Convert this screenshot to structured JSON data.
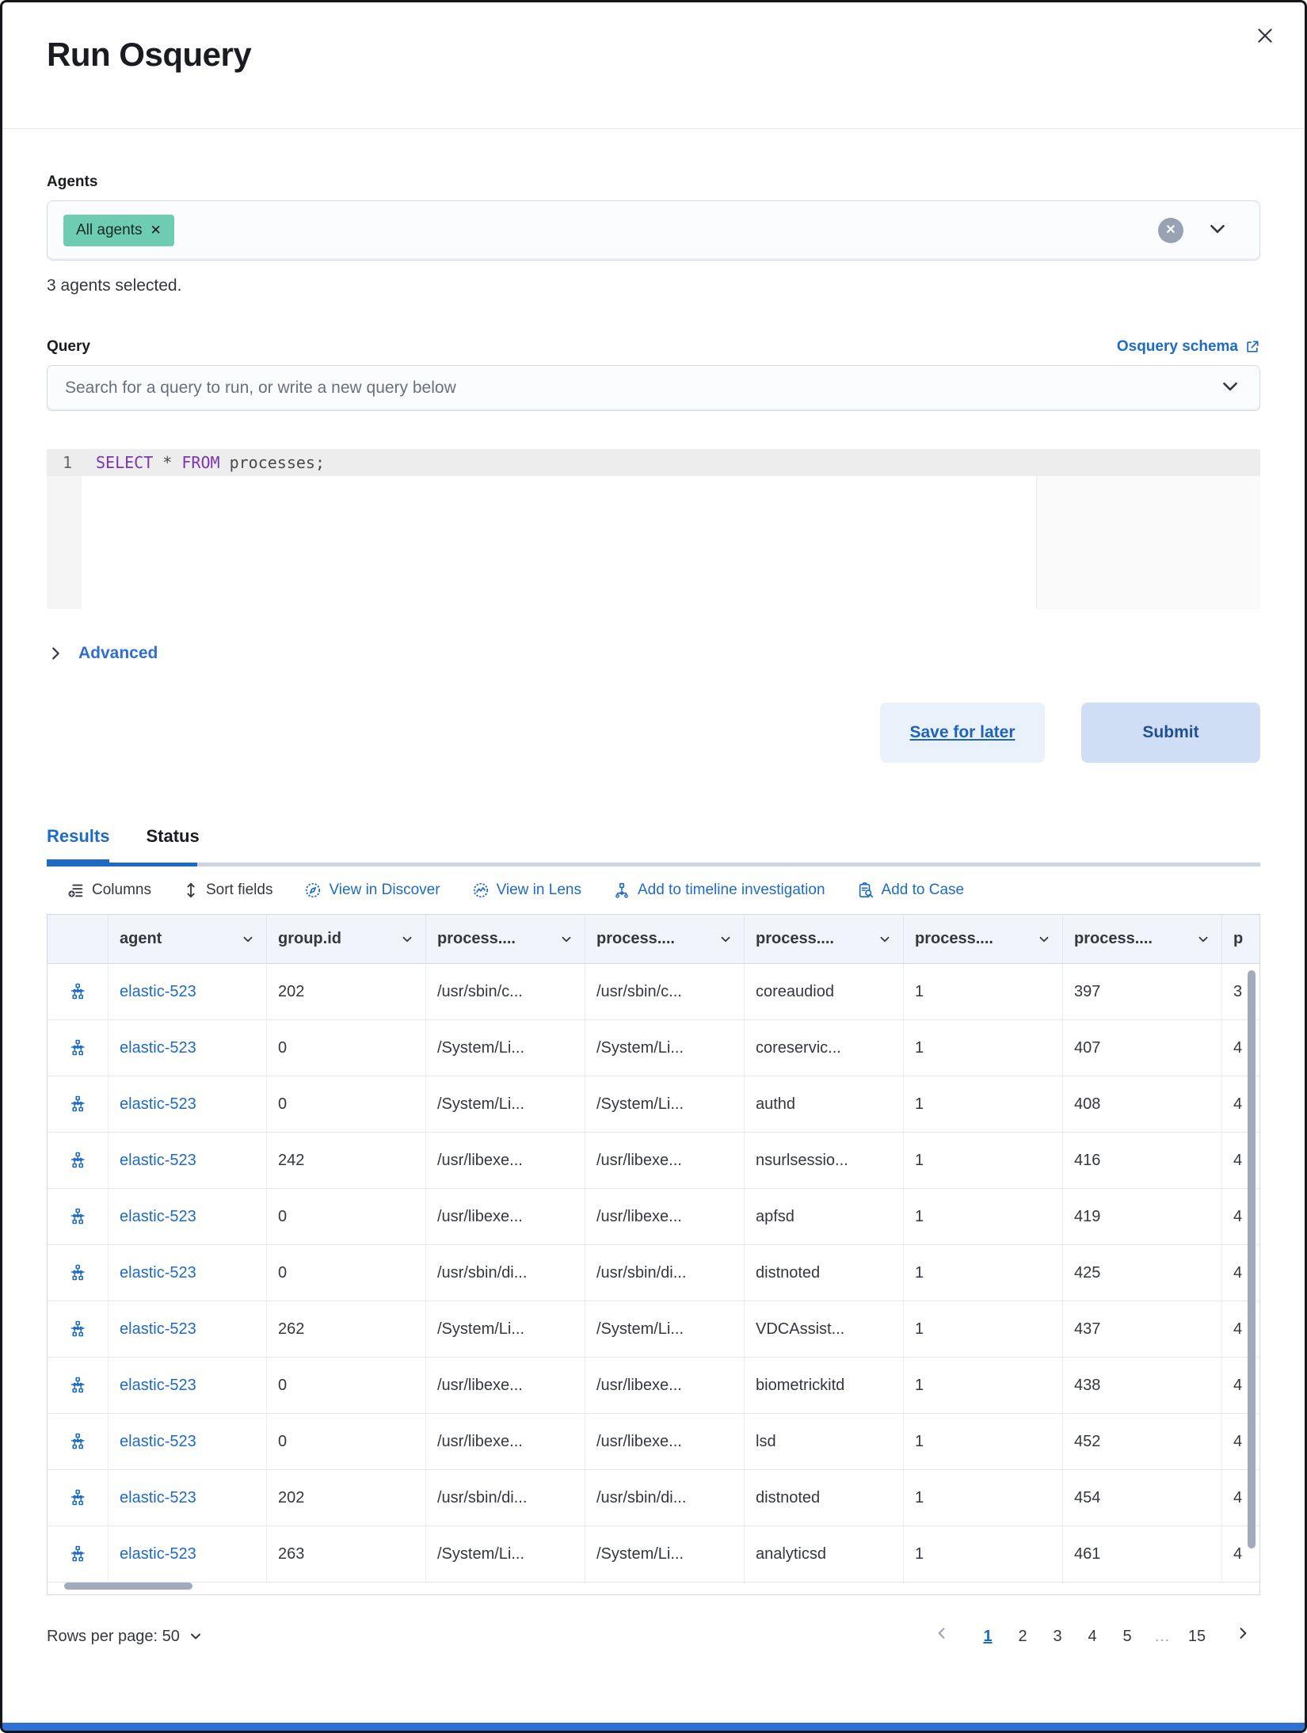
{
  "modal": {
    "title": "Run Osquery",
    "close_icon": "close-x"
  },
  "agents": {
    "label": "Agents",
    "badge_label": "All agents",
    "badge_remove_icon": "x",
    "selected_text": "3 agents selected.",
    "clear_icon": "circle-x",
    "chevron_icon": "chevron-down"
  },
  "query": {
    "label": "Query",
    "schema_link_label": "Osquery schema",
    "schema_link_icon": "external-link",
    "search_placeholder": "Search for a query to run, or write a new query below"
  },
  "editor": {
    "line_number": "1",
    "kw1": "SELECT",
    "mid": " * ",
    "kw2": "FROM",
    "tail": " processes;"
  },
  "advanced_label": "Advanced",
  "actions": {
    "save_label": "Save for later",
    "submit_label": "Submit"
  },
  "tabs": [
    {
      "label": "Results",
      "active": true
    },
    {
      "label": "Status",
      "active": false
    }
  ],
  "toolbar": [
    {
      "label": "Columns",
      "icon": "columns-list-add-icon",
      "style": "dark"
    },
    {
      "label": "Sort fields",
      "icon": "sort-arrows-icon",
      "style": "dark"
    },
    {
      "label": "View in Discover",
      "icon": "discover-compass-icon",
      "style": "blue"
    },
    {
      "label": "View in Lens",
      "icon": "lens-icon",
      "style": "blue"
    },
    {
      "label": "Add to timeline investigation",
      "icon": "timeline-nodes-icon",
      "style": "blue"
    },
    {
      "label": "Add to Case",
      "icon": "case-clipboard-icon",
      "style": "blue"
    }
  ],
  "table": {
    "headers": [
      "",
      "agent",
      "group.id",
      "process....",
      "process....",
      "process....",
      "process....",
      "process....",
      "p"
    ],
    "row_icon": "process-tree-icon",
    "rows": [
      [
        "elastic-523",
        "202",
        "/usr/sbin/c...",
        "/usr/sbin/c...",
        "coreaudiod",
        "1",
        "397",
        "3"
      ],
      [
        "elastic-523",
        "0",
        "/System/Li...",
        "/System/Li...",
        "coreservic...",
        "1",
        "407",
        "4"
      ],
      [
        "elastic-523",
        "0",
        "/System/Li...",
        "/System/Li...",
        "authd",
        "1",
        "408",
        "4"
      ],
      [
        "elastic-523",
        "242",
        "/usr/libexe...",
        "/usr/libexe...",
        "nsurlsessio...",
        "1",
        "416",
        "4"
      ],
      [
        "elastic-523",
        "0",
        "/usr/libexe...",
        "/usr/libexe...",
        "apfsd",
        "1",
        "419",
        "4"
      ],
      [
        "elastic-523",
        "0",
        "/usr/sbin/di...",
        "/usr/sbin/di...",
        "distnoted",
        "1",
        "425",
        "4"
      ],
      [
        "elastic-523",
        "262",
        "/System/Li...",
        "/System/Li...",
        "VDCAssist...",
        "1",
        "437",
        "4"
      ],
      [
        "elastic-523",
        "0",
        "/usr/libexe...",
        "/usr/libexe...",
        "biometrickitd",
        "1",
        "438",
        "4"
      ],
      [
        "elastic-523",
        "0",
        "/usr/libexe...",
        "/usr/libexe...",
        "lsd",
        "1",
        "452",
        "4"
      ],
      [
        "elastic-523",
        "202",
        "/usr/sbin/di...",
        "/usr/sbin/di...",
        "distnoted",
        "1",
        "454",
        "4"
      ],
      [
        "elastic-523",
        "263",
        "/System/Li...",
        "/System/Li...",
        "analyticsd",
        "1",
        "461",
        "4"
      ]
    ]
  },
  "pagination": {
    "rows_per_page_label": "Rows per page: 50",
    "prev_icon": "chevron-left",
    "next_icon": "chevron-right",
    "pages": [
      "1",
      "2",
      "3",
      "4",
      "5",
      "…",
      "15"
    ],
    "active_page": "1"
  },
  "colors": {
    "link_blue": "#1d6bc4",
    "badge_green": "#6dccb1",
    "save_button_bg": "#e9f1fb",
    "submit_button_bg": "#cfdef5",
    "submit_text": "#21508f",
    "keyword_purple": "#7d35b2",
    "progress_track": "#ccd4e2",
    "bottom_bar_blue": "#2f70d7",
    "scrollbar_thumb": "#a2abbd"
  }
}
